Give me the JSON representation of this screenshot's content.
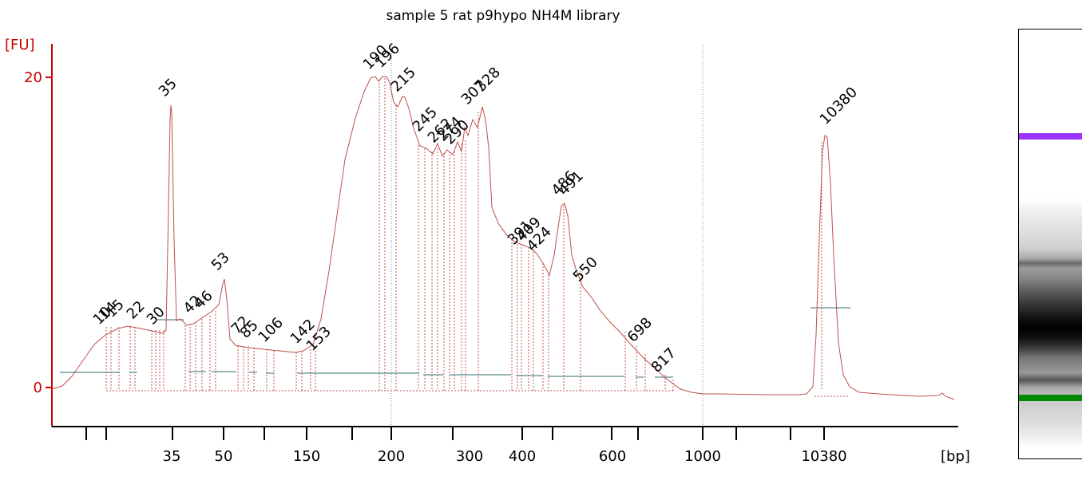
{
  "chart_data": {
    "type": "line",
    "title": "sample 5 rat p9hypo NH4M library",
    "ylabel": "[FU]",
    "xlabel": "[bp]",
    "ylim": [
      -14,
      108
    ],
    "yticks": [
      0,
      20,
      40,
      60,
      80,
      100
    ],
    "x_tick_labels": [
      "35",
      "50",
      "150",
      "200",
      "300",
      "400",
      "600",
      "1000",
      "10380"
    ],
    "colors": {
      "trace": "#c0504d",
      "axis": "#cc0000",
      "lower_marker": "#1a8c1a",
      "upper_marker": "#9933cc",
      "baseline": "#5b8a8a"
    },
    "peaks": [
      {
        "label": "10",
        "y": 19,
        "color": "#000000"
      },
      {
        "label": "14",
        "y": 20,
        "color": "#000000"
      },
      {
        "label": "15",
        "y": 19.5,
        "color": "#000000"
      },
      {
        "label": "22",
        "y": 19,
        "color": "#000000"
      },
      {
        "label": "30",
        "y": 18.5,
        "color": "#000000"
      },
      {
        "label": "35",
        "y": 91,
        "color": "#1a8c1a"
      },
      {
        "label": "42",
        "y": 22,
        "color": "#000000"
      },
      {
        "label": "46",
        "y": 25,
        "color": "#000000"
      },
      {
        "label": "53",
        "y": 35,
        "color": "#000000"
      },
      {
        "label": "72",
        "y": 15,
        "color": "#000000"
      },
      {
        "label": "85",
        "y": 14,
        "color": "#000000"
      },
      {
        "label": "106",
        "y": 13,
        "color": "#000000"
      },
      {
        "label": "142",
        "y": 12,
        "color": "#000000"
      },
      {
        "label": "153",
        "y": 12,
        "color": "#000000"
      },
      {
        "label": "190",
        "y": 100,
        "color": "#000000"
      },
      {
        "label": "196",
        "y": 100,
        "color": "#000000"
      },
      {
        "label": "215",
        "y": 93,
        "color": "#000000"
      },
      {
        "label": "245",
        "y": 79,
        "color": "#000000"
      },
      {
        "label": "262",
        "y": 76,
        "color": "#000000"
      },
      {
        "label": "274",
        "y": 77,
        "color": "#000000"
      },
      {
        "label": "290",
        "y": 82,
        "color": "#000000"
      },
      {
        "label": "307",
        "y": 88,
        "color": "#000000"
      },
      {
        "label": "328",
        "y": 90,
        "color": "#000000"
      },
      {
        "label": "391",
        "y": 46,
        "color": "#000000"
      },
      {
        "label": "409",
        "y": 44,
        "color": "#000000"
      },
      {
        "label": "424",
        "y": 42,
        "color": "#000000"
      },
      {
        "label": "486",
        "y": 59,
        "color": "#000000"
      },
      {
        "label": "491",
        "y": 57,
        "color": "#000000"
      },
      {
        "label": "550",
        "y": 32,
        "color": "#000000"
      },
      {
        "label": "698",
        "y": 16,
        "color": "#000000"
      },
      {
        "label": "817",
        "y": 8,
        "color": "#000000"
      },
      {
        "label": "10380",
        "y": 82,
        "color": "#9933cc"
      }
    ]
  },
  "gel": {
    "bands": [
      {
        "name": "upper-marker-band",
        "color": "#9933ff",
        "level": "10380"
      },
      {
        "name": "lower-marker-band",
        "color": "#008800",
        "level": "35"
      }
    ]
  }
}
